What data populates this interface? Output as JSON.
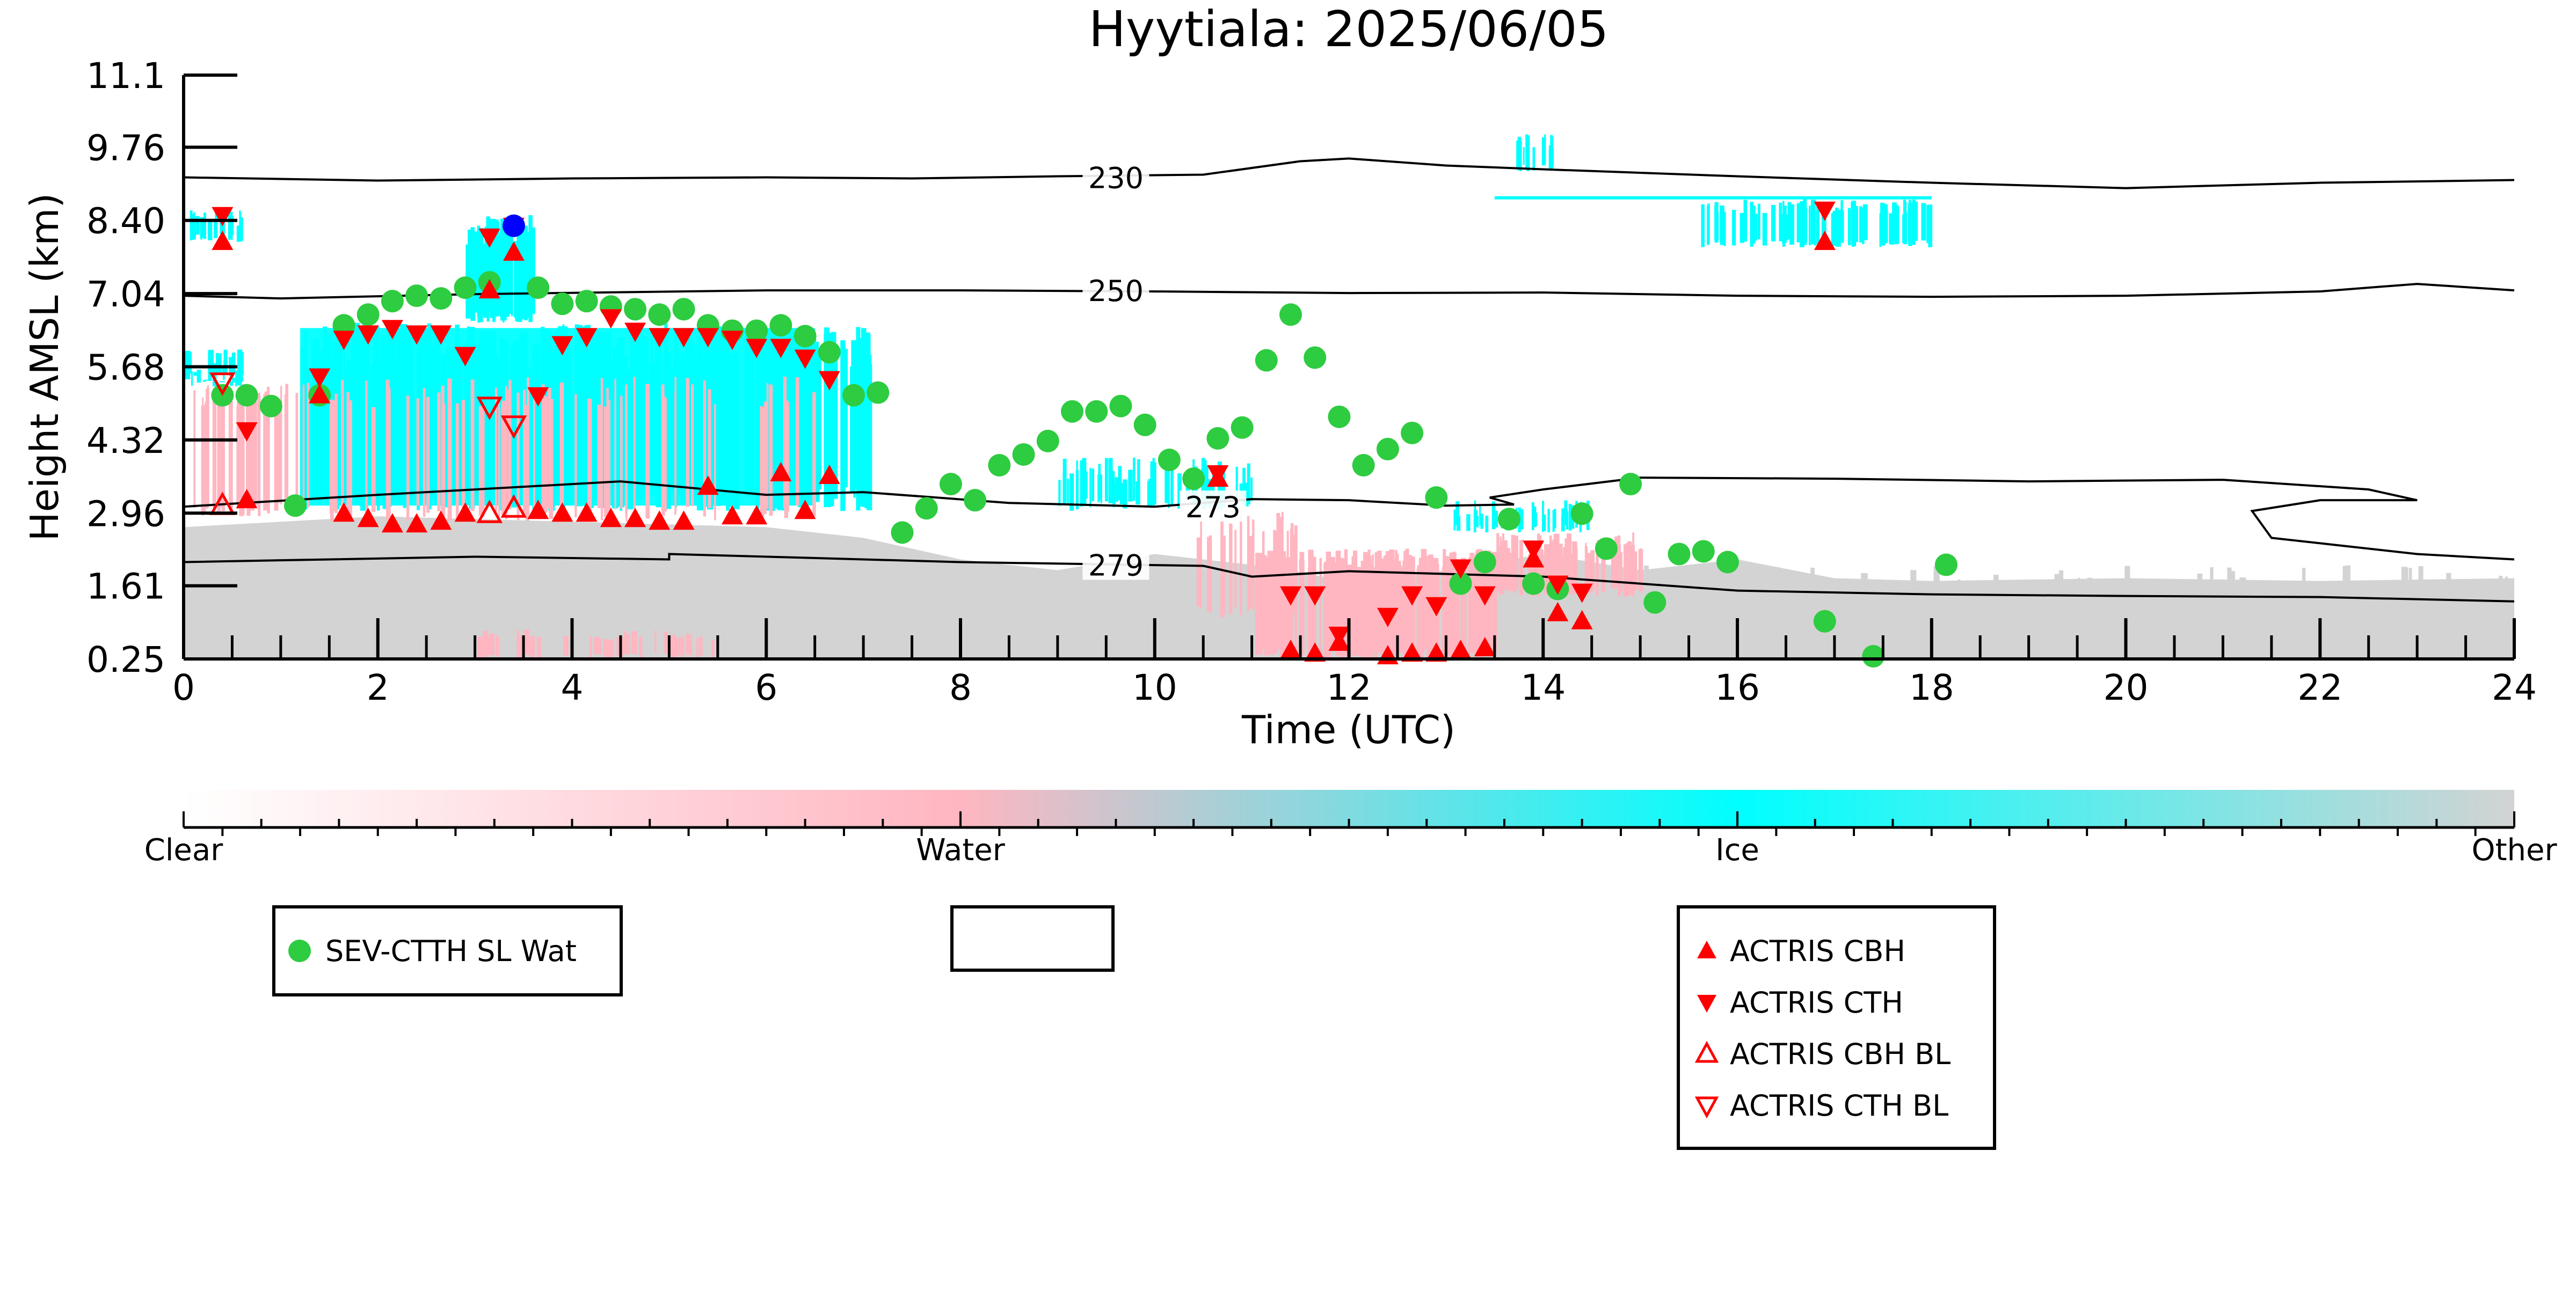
{
  "chart_data": {
    "type": "scatter",
    "title": "Hyytiala: 2025/06/05",
    "xlabel": "Time (UTC)",
    "ylabel": "Height AMSL (km)",
    "xlim": [
      0,
      24
    ],
    "ylim": [
      0.25,
      11.1
    ],
    "x_ticks": [
      0,
      2,
      4,
      6,
      8,
      10,
      12,
      14,
      16,
      18,
      20,
      22,
      24
    ],
    "x_tick_labels": [
      "0",
      "2",
      "4",
      "6",
      "8",
      "10",
      "12",
      "14",
      "16",
      "18",
      "20",
      "22",
      "24"
    ],
    "y_ticks": [
      0.25,
      1.61,
      2.96,
      4.32,
      5.68,
      7.04,
      8.4,
      9.76,
      11.1
    ],
    "y_tick_labels": [
      "0.25",
      "1.61",
      "2.96",
      "4.32",
      "5.68",
      "7.04",
      "8.40",
      "9.76",
      "11.1"
    ],
    "grid": false,
    "colorbar": {
      "labels": [
        "Clear",
        "Water",
        "Ice",
        "Other"
      ],
      "colors": [
        "#ffffff",
        "#ffb6c1",
        "#00ffff",
        "#d3d3d3"
      ]
    },
    "contours": [
      {
        "label": "230",
        "points": [
          [
            0,
            9.2
          ],
          [
            2,
            9.14
          ],
          [
            4,
            9.18
          ],
          [
            6,
            9.2
          ],
          [
            7.5,
            9.18
          ],
          [
            9,
            9.22
          ],
          [
            10.5,
            9.25
          ],
          [
            11.5,
            9.5
          ],
          [
            12,
            9.55
          ],
          [
            13,
            9.42
          ],
          [
            14,
            9.35
          ],
          [
            16,
            9.22
          ],
          [
            18,
            9.1
          ],
          [
            20,
            9.0
          ],
          [
            22,
            9.1
          ],
          [
            24,
            9.15
          ]
        ]
      },
      {
        "label": "250",
        "points": [
          [
            0,
            7.0
          ],
          [
            1,
            6.95
          ],
          [
            3,
            7.03
          ],
          [
            6,
            7.1
          ],
          [
            8,
            7.1
          ],
          [
            10,
            7.08
          ],
          [
            12,
            7.05
          ],
          [
            14,
            7.06
          ],
          [
            16,
            7.0
          ],
          [
            18,
            6.98
          ],
          [
            20,
            7.0
          ],
          [
            22,
            7.08
          ],
          [
            23,
            7.22
          ],
          [
            24,
            7.1
          ]
        ]
      },
      {
        "label": "273",
        "points": [
          [
            0,
            3.08
          ],
          [
            2,
            3.3
          ],
          [
            4.5,
            3.55
          ],
          [
            6,
            3.3
          ],
          [
            7,
            3.35
          ],
          [
            8.5,
            3.15
          ],
          [
            10,
            3.08
          ],
          [
            11,
            3.22
          ],
          [
            12,
            3.2
          ],
          [
            13,
            3.1
          ],
          [
            13.7,
            3.12
          ],
          [
            13.45,
            3.25
          ],
          [
            14,
            3.4
          ],
          [
            15,
            3.62
          ],
          [
            17,
            3.6
          ],
          [
            19,
            3.55
          ],
          [
            21,
            3.58
          ],
          [
            22.5,
            3.4
          ],
          [
            23,
            3.2
          ],
          [
            22,
            3.2
          ],
          [
            21.3,
            3.0
          ],
          [
            21.5,
            2.5
          ],
          [
            23,
            2.2
          ],
          [
            24,
            2.1
          ]
        ]
      },
      {
        "label": "279",
        "points": [
          [
            0,
            2.05
          ],
          [
            3,
            2.15
          ],
          [
            5,
            2.1
          ],
          [
            5,
            2.2
          ],
          [
            8,
            2.05
          ],
          [
            10.5,
            1.98
          ],
          [
            11,
            1.78
          ],
          [
            12,
            1.88
          ],
          [
            14,
            1.78
          ],
          [
            16,
            1.52
          ],
          [
            18,
            1.45
          ],
          [
            20,
            1.42
          ],
          [
            22,
            1.4
          ],
          [
            24,
            1.32
          ]
        ]
      }
    ],
    "series": [
      {
        "name": "SEV-CTTH SL Wat",
        "marker": "circle",
        "color": "#2ecc40",
        "x": [
          0.4,
          0.65,
          0.9,
          1.15,
          1.4,
          1.65,
          1.9,
          2.15,
          2.4,
          2.65,
          2.9,
          3.15,
          3.4,
          3.65,
          3.9,
          4.15,
          4.4,
          4.65,
          4.9,
          5.15,
          5.4,
          5.65,
          5.9,
          6.15,
          6.4,
          6.65,
          6.9,
          7.15,
          7.4,
          7.65,
          7.9,
          8.15,
          8.4,
          8.65,
          8.9,
          9.15,
          9.4,
          9.65,
          9.9,
          10.15,
          10.4,
          10.65,
          10.9,
          11.15,
          11.4,
          11.65,
          11.9,
          12.15,
          12.4,
          12.65,
          12.9,
          13.15,
          13.4,
          13.65,
          13.9,
          14.15,
          14.4,
          14.65,
          14.9,
          15.15,
          15.4,
          15.65,
          15.9,
          16.9,
          17.4,
          18.15
        ],
        "y": [
          5.15,
          5.15,
          4.95,
          3.1,
          5.15,
          6.45,
          6.65,
          6.9,
          7.0,
          6.95,
          7.15,
          7.25,
          8.3,
          7.15,
          6.85,
          6.9,
          6.8,
          6.75,
          6.65,
          6.75,
          6.45,
          6.35,
          6.35,
          6.45,
          6.25,
          5.95,
          5.15,
          5.2,
          2.6,
          3.05,
          3.5,
          3.2,
          3.85,
          4.05,
          4.3,
          4.85,
          4.85,
          4.95,
          4.6,
          3.95,
          3.6,
          4.35,
          4.55,
          5.8,
          6.65,
          5.85,
          4.75,
          3.85,
          4.15,
          4.45,
          3.25,
          1.65,
          2.05,
          2.85,
          1.65,
          1.55,
          2.95,
          2.3,
          3.5,
          1.3,
          2.2,
          2.25,
          2.05,
          0.95,
          0.3,
          2.0
        ]
      },
      {
        "name": "ACTRIS CBH",
        "marker": "triangle-up",
        "color": "#ff0000",
        "filled": true,
        "x": [
          0.4,
          0.65,
          1.4,
          1.65,
          1.9,
          2.15,
          2.4,
          2.65,
          2.9,
          3.15,
          3.4,
          3.65,
          3.9,
          4.15,
          4.4,
          4.65,
          4.9,
          5.15,
          5.4,
          5.65,
          5.9,
          6.15,
          6.4,
          6.65,
          10.65,
          11.4,
          11.65,
          11.9,
          12.4,
          12.65,
          12.9,
          13.15,
          13.4,
          13.9,
          14.15,
          14.4,
          16.9
        ],
        "y": [
          8.0,
          3.2,
          5.15,
          2.95,
          2.85,
          2.75,
          2.75,
          2.8,
          2.95,
          7.1,
          7.8,
          3.0,
          2.95,
          2.95,
          2.85,
          2.85,
          2.8,
          2.8,
          3.45,
          2.9,
          2.9,
          3.7,
          3.0,
          3.65,
          3.6,
          0.4,
          0.35,
          0.55,
          0.3,
          0.35,
          0.35,
          0.4,
          0.45,
          2.1,
          1.1,
          0.95,
          8.0
        ]
      },
      {
        "name": "ACTRIS CTH",
        "marker": "triangle-down",
        "color": "#ff0000",
        "filled": true,
        "x": [
          0.4,
          0.65,
          1.4,
          1.65,
          1.9,
          2.15,
          2.4,
          2.65,
          2.9,
          3.15,
          3.4,
          3.65,
          3.9,
          4.15,
          4.4,
          4.65,
          4.9,
          5.15,
          5.4,
          5.65,
          5.9,
          6.15,
          6.4,
          6.65,
          10.65,
          11.4,
          11.65,
          11.9,
          12.4,
          12.65,
          12.9,
          13.15,
          13.4,
          13.9,
          14.15,
          14.4,
          16.9
        ],
        "y": [
          8.5,
          4.5,
          5.5,
          6.2,
          6.3,
          6.4,
          6.3,
          6.3,
          5.9,
          8.1,
          8.3,
          5.15,
          6.1,
          6.25,
          6.6,
          6.35,
          6.25,
          6.25,
          6.25,
          6.2,
          6.05,
          6.05,
          5.85,
          5.45,
          3.7,
          1.45,
          1.45,
          0.7,
          1.05,
          1.45,
          1.25,
          1.95,
          1.45,
          2.3,
          1.65,
          1.5,
          8.6
        ]
      },
      {
        "name": "ACTRIS CBH BL",
        "marker": "triangle-up",
        "color": "#ff0000",
        "filled": false,
        "x": [
          0.4,
          3.15,
          3.4
        ],
        "y": [
          3.1,
          2.95,
          3.05
        ]
      },
      {
        "name": "ACTRIS CTH BL",
        "marker": "triangle-down",
        "color": "#ff0000",
        "filled": false,
        "x": [
          0.4,
          3.15,
          3.4
        ],
        "y": [
          5.4,
          4.95,
          4.6
        ]
      },
      {
        "marker": "circle",
        "color": "#0000ff",
        "x": [
          3.4
        ],
        "y": [
          8.3
        ]
      }
    ]
  },
  "legend": {
    "sev": [
      "SEV-CTTH SL Wat"
    ],
    "actris": [
      "ACTRIS CBH",
      "ACTRIS CTH",
      "ACTRIS CBH BL",
      "ACTRIS CTH BL"
    ]
  }
}
